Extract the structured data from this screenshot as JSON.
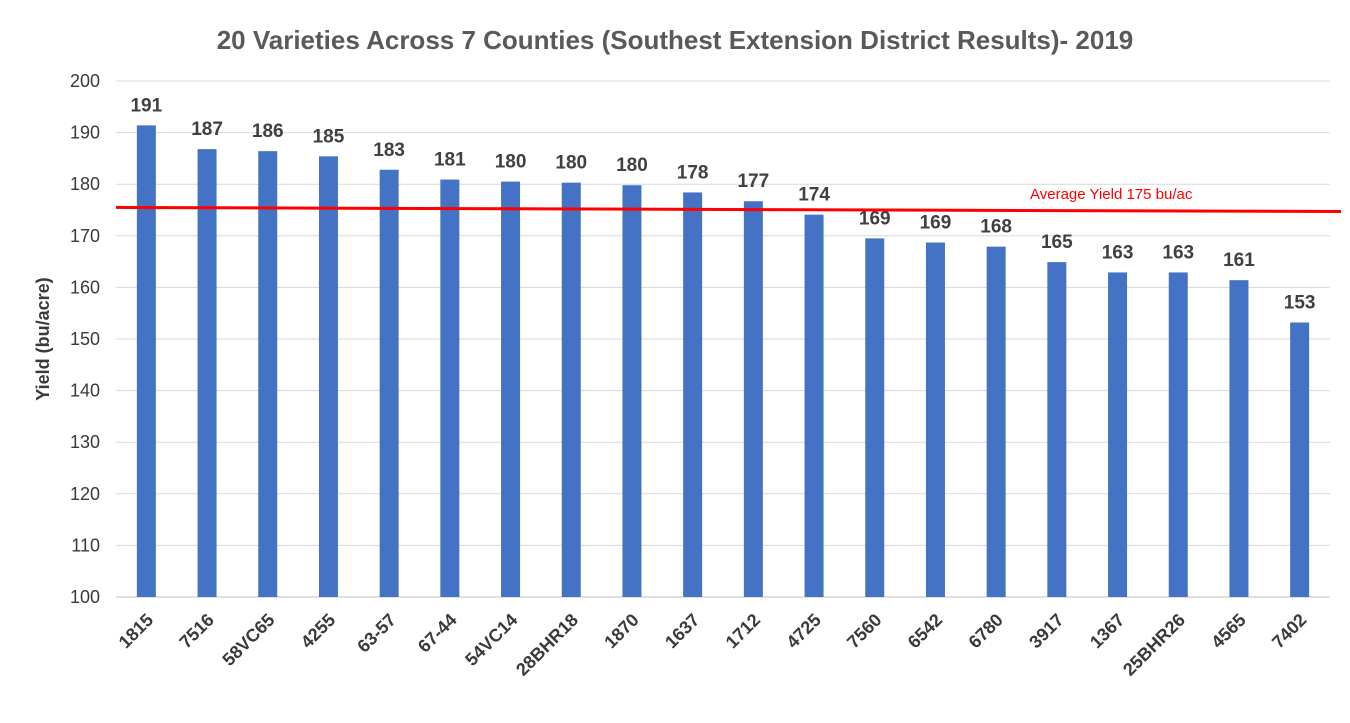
{
  "chart_data": {
    "type": "bar",
    "title": "20 Varieties Across 7 Counties (Southest Extension District Results)- 2019",
    "xlabel": "",
    "ylabel": "Yield (bu/acre)",
    "ylim": [
      100,
      200
    ],
    "yticks": [
      100,
      110,
      120,
      130,
      140,
      150,
      160,
      170,
      180,
      190,
      200
    ],
    "grid": true,
    "legend": "none",
    "categories": [
      "1815",
      "7516",
      "58VC65",
      "4255",
      "63-57",
      "67-44",
      "54VC14",
      "28BHR18",
      "1870",
      "1637",
      "1712",
      "4725",
      "7560",
      "6542",
      "6780",
      "3917",
      "1367",
      "25BHR26",
      "4565",
      "7402"
    ],
    "values": [
      191.4,
      186.8,
      186.4,
      185.4,
      182.8,
      180.9,
      180.5,
      180.3,
      179.8,
      178.4,
      176.7,
      174.1,
      169.5,
      168.7,
      167.9,
      164.9,
      162.9,
      162.9,
      161.4,
      153.2
    ],
    "data_labels": [
      "191",
      "187",
      "186",
      "185",
      "183",
      "181",
      "180",
      "180",
      "180",
      "178",
      "177",
      "174",
      "169",
      "169",
      "168",
      "165",
      "163",
      "163",
      "161",
      "153"
    ],
    "bar_color": "#4472c4",
    "reference_line": {
      "label": "Average Yield 175 bu/ac",
      "y_start": 175.5,
      "y_end": 174.7,
      "color": "#ff0000"
    }
  }
}
